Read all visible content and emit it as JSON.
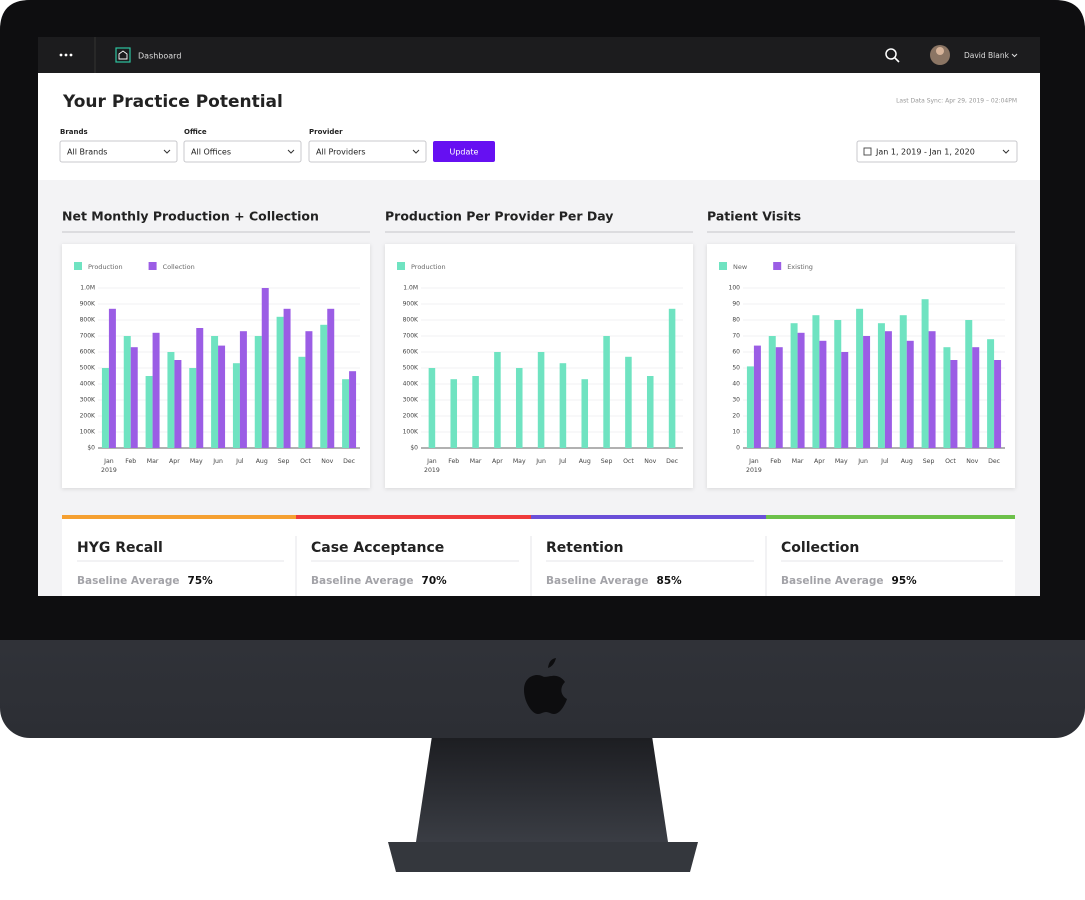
{
  "topbar": {
    "page": "Dashboard",
    "user": "David Blank"
  },
  "header": {
    "title": "Your Practice Potential",
    "sync": "Last Data Sync: Apr 29, 2019 – 02:04PM"
  },
  "filters": [
    {
      "label": "Brands",
      "value": "All Brands"
    },
    {
      "label": "Office",
      "value": "All Offices"
    },
    {
      "label": "Provider",
      "value": "All Providers"
    }
  ],
  "update": "Update",
  "date_range": "Jan 1, 2019 - Jan 1, 2020",
  "charts": [
    {
      "type": "bar",
      "title": "Net Monthly Production + Collection",
      "categories": [
        "Jan",
        "Feb",
        "Mar",
        "Apr",
        "May",
        "Jun",
        "Jul",
        "Aug",
        "Sep",
        "Oct",
        "Nov",
        "Dec"
      ],
      "year_label": "2019",
      "series": [
        {
          "name": "Production",
          "color": "#6fe3c1",
          "values": [
            500000,
            700000,
            450000,
            600000,
            500000,
            700000,
            530000,
            700000,
            820000,
            570000,
            770000,
            430000
          ]
        },
        {
          "name": "Collection",
          "color": "#9b5de5",
          "values": [
            870000,
            630000,
            720000,
            550000,
            750000,
            640000,
            730000,
            1000000,
            870000,
            730000,
            870000,
            480000
          ]
        }
      ],
      "ylim": [
        0,
        1000000
      ],
      "yticks": [
        {
          "value": 0,
          "label": "$0"
        },
        {
          "value": 100000,
          "label": "100K"
        },
        {
          "value": 200000,
          "label": "200K"
        },
        {
          "value": 300000,
          "label": "300K"
        },
        {
          "value": 400000,
          "label": "400K"
        },
        {
          "value": 500000,
          "label": "500K"
        },
        {
          "value": 600000,
          "label": "600K"
        },
        {
          "value": 700000,
          "label": "700K"
        },
        {
          "value": 800000,
          "label": "800K"
        },
        {
          "value": 900000,
          "label": "900K"
        },
        {
          "value": 1000000,
          "label": "1.0M"
        }
      ],
      "grid": true
    },
    {
      "type": "bar",
      "title": "Production Per Provider Per Day",
      "categories": [
        "Jan",
        "Feb",
        "Mar",
        "Apr",
        "May",
        "Jun",
        "Jul",
        "Aug",
        "Sep",
        "Oct",
        "Nov",
        "Dec"
      ],
      "year_label": "2019",
      "series": [
        {
          "name": "Production",
          "color": "#6fe3c1",
          "values": [
            500000,
            430000,
            450000,
            600000,
            500000,
            600000,
            530000,
            430000,
            700000,
            570000,
            450000,
            870000
          ]
        }
      ],
      "ylim": [
        0,
        1000000
      ],
      "yticks": [
        {
          "value": 0,
          "label": "$0"
        },
        {
          "value": 100000,
          "label": "100K"
        },
        {
          "value": 200000,
          "label": "200K"
        },
        {
          "value": 300000,
          "label": "300K"
        },
        {
          "value": 400000,
          "label": "400K"
        },
        {
          "value": 500000,
          "label": "500K"
        },
        {
          "value": 600000,
          "label": "600K"
        },
        {
          "value": 700000,
          "label": "700K"
        },
        {
          "value": 800000,
          "label": "800K"
        },
        {
          "value": 900000,
          "label": "900K"
        },
        {
          "value": 1000000,
          "label": "1.0M"
        }
      ],
      "grid": true
    },
    {
      "type": "bar",
      "title": "Patient Visits",
      "categories": [
        "Jan",
        "Feb",
        "Mar",
        "Apr",
        "May",
        "Jun",
        "Jul",
        "Aug",
        "Sep",
        "Oct",
        "Nov",
        "Dec"
      ],
      "year_label": "2019",
      "series": [
        {
          "name": "New",
          "color": "#6fe3c1",
          "values": [
            51,
            70,
            78,
            83,
            80,
            87,
            78,
            83,
            93,
            63,
            80,
            68
          ]
        },
        {
          "name": "Existing",
          "color": "#9b5de5",
          "values": [
            64,
            63,
            72,
            67,
            60,
            70,
            73,
            67,
            73,
            55,
            63,
            55
          ]
        }
      ],
      "ylim": [
        0,
        100
      ],
      "yticks": [
        0,
        10,
        20,
        30,
        40,
        50,
        60,
        70,
        80,
        90,
        100
      ],
      "grid": true
    }
  ],
  "kpis": [
    {
      "title": "HYG Recall",
      "label": "Baseline Average",
      "value": "75%",
      "color": "#f5a031"
    },
    {
      "title": "Case Acceptance",
      "label": "Baseline Average",
      "value": "70%",
      "color": "#ef3b3b"
    },
    {
      "title": "Retention",
      "label": "Baseline Average",
      "value": "85%",
      "color": "#6a4fd8"
    },
    {
      "title": "Collection",
      "label": "Baseline Average",
      "value": "95%",
      "color": "#6cc04a"
    }
  ]
}
